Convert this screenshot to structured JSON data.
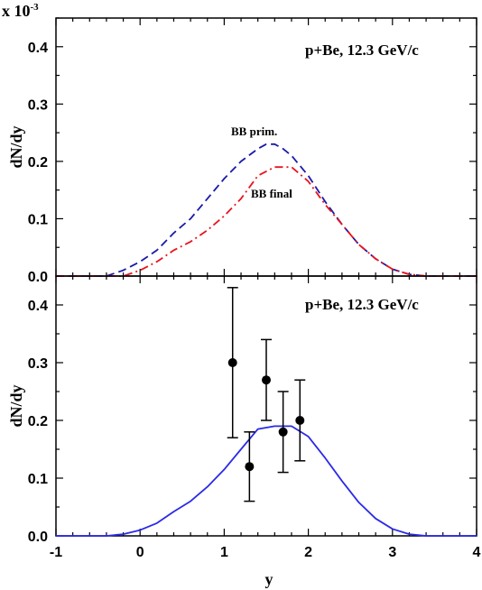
{
  "chart_data": [
    {
      "type": "line",
      "panel": "top",
      "ylabel": "dN/dy",
      "y_multiplier_label": "x 10",
      "y_multiplier_exp": "-3",
      "annotation": "p+Be, 12.3 GeV/c",
      "xlim": [
        -1,
        4
      ],
      "ylim": [
        0,
        0.45
      ],
      "yticks": [
        "0.0",
        "0.1",
        "0.2",
        "0.3",
        "0.4"
      ],
      "grid": false,
      "series": [
        {
          "name": "BB prim.",
          "style": "dashed",
          "color": "#1a1aa8",
          "x": [
            -1.0,
            -0.4,
            -0.2,
            0.0,
            0.2,
            0.4,
            0.6,
            0.8,
            1.0,
            1.2,
            1.4,
            1.5,
            1.6,
            1.7,
            1.8,
            2.0,
            2.2,
            2.4,
            2.6,
            2.8,
            3.0,
            3.2,
            3.4,
            4.0
          ],
          "y": [
            0.0,
            0.0,
            0.01,
            0.025,
            0.045,
            0.075,
            0.1,
            0.135,
            0.17,
            0.2,
            0.222,
            0.23,
            0.23,
            0.222,
            0.21,
            0.175,
            0.13,
            0.09,
            0.055,
            0.03,
            0.012,
            0.003,
            0.0,
            0.0
          ]
        },
        {
          "name": "BB final",
          "style": "dash-dot",
          "color": "#e8141e",
          "x": [
            -1.0,
            -0.2,
            0.0,
            0.2,
            0.4,
            0.6,
            0.8,
            1.0,
            1.2,
            1.4,
            1.6,
            1.8,
            2.0,
            2.2,
            2.4,
            2.6,
            2.8,
            3.0,
            3.2,
            3.4,
            4.0
          ],
          "y": [
            0.0,
            0.0,
            0.01,
            0.025,
            0.045,
            0.06,
            0.08,
            0.105,
            0.135,
            0.175,
            0.19,
            0.19,
            0.165,
            0.125,
            0.09,
            0.055,
            0.03,
            0.012,
            0.003,
            0.0,
            0.0
          ]
        }
      ]
    },
    {
      "type": "line+scatter",
      "panel": "bottom",
      "xlabel": "y",
      "ylabel": "dN/dy",
      "annotation": "p+Be, 12.3 GeV/c",
      "xlim": [
        -1,
        4
      ],
      "ylim": [
        0,
        0.45
      ],
      "xticks": [
        "-1",
        "0",
        "1",
        "2",
        "3",
        "4"
      ],
      "yticks": [
        "0.0",
        "0.1",
        "0.2",
        "0.3",
        "0.4"
      ],
      "grid": false,
      "series": [
        {
          "style": "solid",
          "color": "#2a2ae8",
          "x": [
            -1.0,
            -0.4,
            -0.2,
            0.0,
            0.2,
            0.4,
            0.6,
            0.8,
            1.0,
            1.2,
            1.4,
            1.6,
            1.8,
            2.0,
            2.2,
            2.4,
            2.6,
            2.8,
            3.0,
            3.2,
            3.4,
            4.0
          ],
          "y": [
            0.0,
            0.0,
            0.003,
            0.01,
            0.022,
            0.042,
            0.06,
            0.085,
            0.115,
            0.15,
            0.185,
            0.19,
            0.19,
            0.172,
            0.135,
            0.095,
            0.058,
            0.03,
            0.012,
            0.003,
            0.0,
            0.0
          ]
        },
        {
          "style": "points",
          "color": "#000000",
          "x": [
            1.1,
            1.3,
            1.5,
            1.7,
            1.9
          ],
          "y": [
            0.3,
            0.12,
            0.27,
            0.18,
            0.2
          ],
          "y_low": [
            0.17,
            0.06,
            0.2,
            0.11,
            0.13
          ],
          "y_high": [
            0.43,
            0.18,
            0.34,
            0.25,
            0.27
          ]
        }
      ]
    }
  ]
}
